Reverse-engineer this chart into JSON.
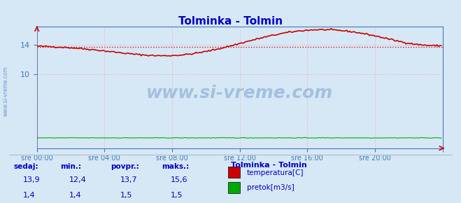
{
  "title": "Tolminka - Tolmin",
  "title_color": "#0000cc",
  "bg_color": "#d6e8f5",
  "plot_bg_color": "#d6e8f5",
  "grid_color": "#ff9999",
  "grid_style": ":",
  "ylim": [
    0,
    16.5
  ],
  "yticks": [
    10,
    14
  ],
  "xlim": [
    0,
    288
  ],
  "xtick_positions": [
    0,
    48,
    96,
    144,
    192,
    240,
    288
  ],
  "xtick_labels": [
    "sre 00:00",
    "sre 04:00",
    "sre 08:00",
    "sre 12:00",
    "sre 16:00",
    "sre 20:00",
    ""
  ],
  "avg_temp": 13.7,
  "avg_line_color": "#cc0000",
  "temp_color": "#cc0000",
  "pretok_color": "#00aa00",
  "watermark": "www.si-vreme.com",
  "watermark_color": "#4477bb",
  "watermark_alpha": 0.35,
  "legend_title": "Tolminka - Tolmin",
  "legend_title_color": "#0000cc",
  "legend_items": [
    "temperatura[C]",
    "pretok[m3/s]"
  ],
  "legend_colors": [
    "#cc0000",
    "#00aa00"
  ],
  "table_headers": [
    "sedaj:",
    "min.:",
    "povpr.:",
    "maks.:"
  ],
  "table_temp": [
    "13,9",
    "12,4",
    "13,7",
    "15,6"
  ],
  "table_pretok": [
    "1,4",
    "1,4",
    "1,5",
    "1,5"
  ],
  "table_color": "#0000cc",
  "axis_color": "#4477bb",
  "tick_color": "#4477bb"
}
